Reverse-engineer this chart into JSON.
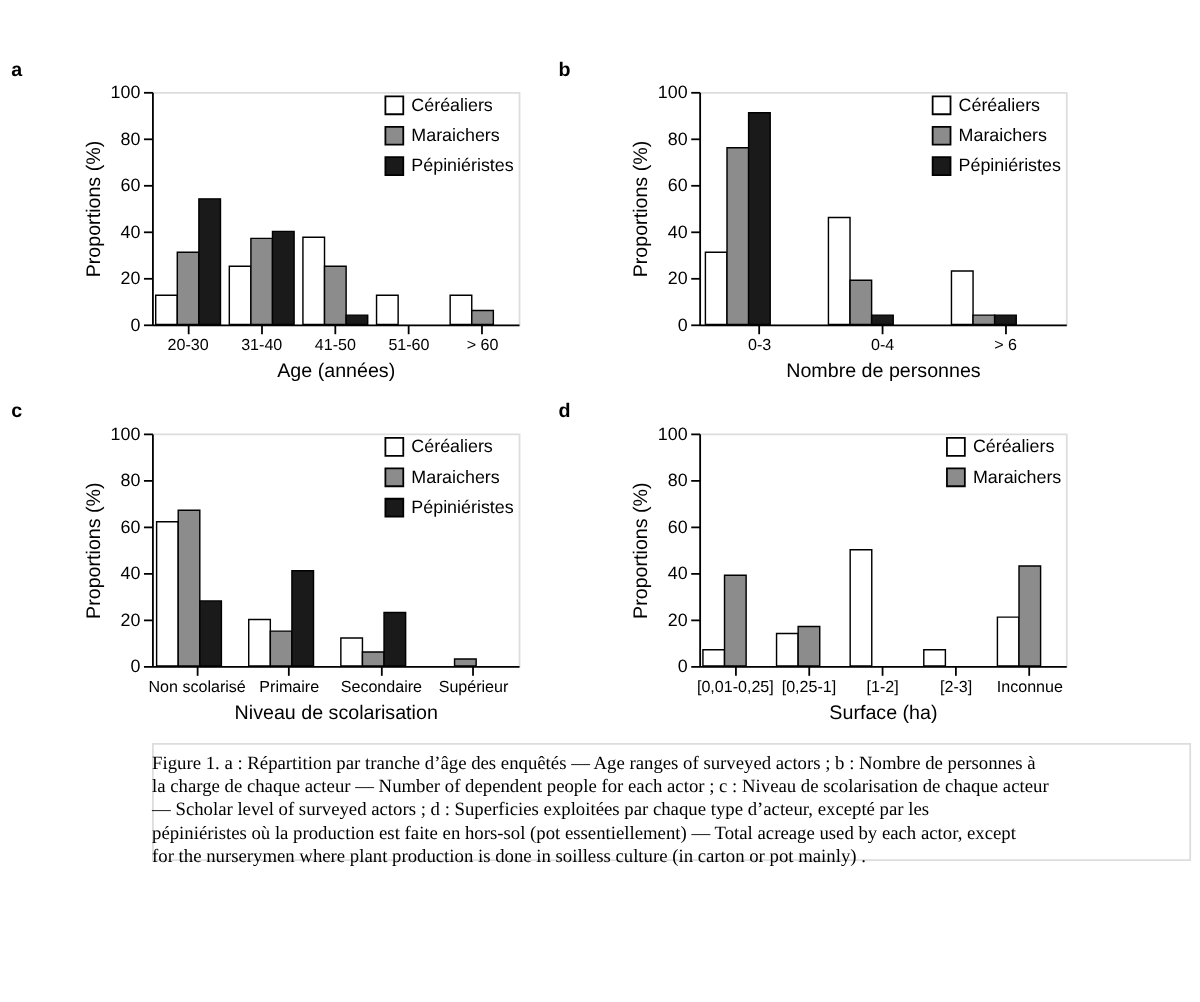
{
  "chart_data": [
    {
      "type": "bar",
      "title": "a",
      "xlabel": "Age (années)",
      "ylabel": "Proportions (%)",
      "categories": [
        "20-30",
        "31-40",
        "41-50",
        "51-60",
        "> 60"
      ],
      "ylim": [
        0,
        100
      ],
      "yticks": [
        0,
        20,
        40,
        60,
        80,
        100
      ],
      "grid": false,
      "legend": "top right",
      "series": [
        {
          "name": "Céréaliers",
          "color": "#ffffff",
          "values": [
            12.5,
            25,
            37.5,
            12.5,
            12.5
          ]
        },
        {
          "name": "Maraichers",
          "color": "#8c8c8c",
          "values": [
            31,
            37,
            25,
            null,
            6
          ]
        },
        {
          "name": "Pépiniéristes",
          "color": "#1a1a1a",
          "values": [
            54,
            40,
            4,
            null,
            null
          ]
        }
      ]
    },
    {
      "type": "bar",
      "title": "b",
      "xlabel": "Nombre de personnes",
      "ylabel": "Proportions (%)",
      "categories": [
        "0-3",
        "0-4",
        "> 6"
      ],
      "ylim": [
        0,
        100
      ],
      "yticks": [
        0,
        20,
        40,
        60,
        80,
        100
      ],
      "grid": false,
      "legend": "top right",
      "series": [
        {
          "name": "Céréaliers",
          "color": "#ffffff",
          "values": [
            31,
            46,
            23
          ]
        },
        {
          "name": "Maraichers",
          "color": "#8c8c8c",
          "values": [
            76,
            19,
            4
          ]
        },
        {
          "name": "Pépiniéristes",
          "color": "#1a1a1a",
          "values": [
            91,
            4,
            4
          ]
        }
      ]
    },
    {
      "type": "bar",
      "title": "c",
      "xlabel": "Niveau de scolarisation",
      "ylabel": "Proportions (%)",
      "categories": [
        "Non scolarisé",
        "Primaire",
        "Secondaire",
        "Supérieur"
      ],
      "ylim": [
        0,
        100
      ],
      "yticks": [
        0,
        20,
        40,
        60,
        80,
        100
      ],
      "grid": false,
      "legend": "top right",
      "series": [
        {
          "name": "Céréaliers",
          "color": "#ffffff",
          "values": [
            62,
            20,
            12,
            null
          ]
        },
        {
          "name": "Maraichers",
          "color": "#8c8c8c",
          "values": [
            67,
            15,
            6,
            3
          ]
        },
        {
          "name": "Pépiniéristes",
          "color": "#1a1a1a",
          "values": [
            28,
            41,
            23,
            null
          ]
        }
      ]
    },
    {
      "type": "bar",
      "title": "d",
      "xlabel": "Surface (ha)",
      "ylabel": "Proportions (%)",
      "categories": [
        "[0,01-0,25]",
        "[0,25-1]",
        "[1-2]",
        "[2-3]",
        "Inconnue"
      ],
      "ylim": [
        0,
        100
      ],
      "yticks": [
        0,
        20,
        40,
        60,
        80,
        100
      ],
      "grid": false,
      "legend": "top right",
      "series": [
        {
          "name": "Céréaliers",
          "color": "#ffffff",
          "values": [
            7,
            14,
            50,
            7,
            21
          ]
        },
        {
          "name": "Maraichers",
          "color": "#8c8c8c",
          "values": [
            39,
            17,
            null,
            null,
            43
          ]
        }
      ],
      "annotations": [
        "Figure 1. a : Répartition par tranche d’âge des enquêtés — Age ranges of surveyed actors ; b : Nombre de personnes à la charge de chaque acteur — Number of dependent people for each actor ; c : Niveau de scolarisation de chaque acteur — Scholar level of surveyed actors ; d : Superficies exploitées par chaque type d’acteur, excepté par les pépiniéristes où la production est faite en hors-sol (pot essentiellement) — Total acreage used by each actor, except for the nurserymen where plant production is done in soilless culture (in carton or pot mainly) ."
      ]
    }
  ]
}
